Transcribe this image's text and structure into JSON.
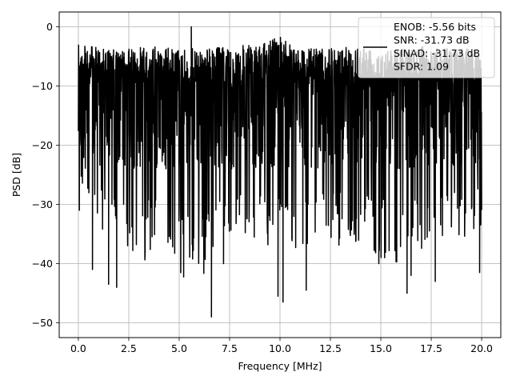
{
  "chart_data": {
    "type": "line",
    "xlabel": "Frequency [MHz]",
    "ylabel": "PSD [dB]",
    "xlim": [
      -0.95,
      20.95
    ],
    "ylim": [
      -52.5,
      2.5
    ],
    "grid": true,
    "x_ticks": [
      0.0,
      2.5,
      5.0,
      7.5,
      10.0,
      12.5,
      15.0,
      17.5,
      20.0
    ],
    "x_tick_labels": [
      "0.0",
      "2.5",
      "5.0",
      "7.5",
      "10.0",
      "12.5",
      "15.0",
      "17.5",
      "20.0"
    ],
    "y_ticks": [
      0,
      -10,
      -20,
      -30,
      -40,
      -50
    ],
    "y_tick_labels": [
      "0",
      "−10",
      "−20",
      "−30",
      "−40",
      "−50"
    ],
    "legend": {
      "placement": "top-right",
      "lines": [
        "ENOB: -5.56 bits",
        "SNR: -31.73 dB",
        "SINAD: -31.73 dB",
        "SFDR: 1.09"
      ]
    },
    "series": [
      {
        "color": "#000000",
        "x_range": [
          0,
          20
        ],
        "upper_envelope": [
          -3,
          -3.5,
          -4,
          -3.5,
          -3.2,
          -3.8,
          -3.6,
          -3.4,
          -3,
          -3.3,
          -1.2,
          -3.5,
          -3.8,
          -3.5,
          -3.2,
          -3.4,
          -3.6,
          -3.3,
          -3.5,
          -3.7,
          -3.8
        ],
        "lower_envelope": [
          -26,
          -34,
          -36,
          -41,
          -36,
          -43.5,
          -44,
          -38,
          -34,
          -37,
          -39,
          -38,
          -36,
          -37,
          -38,
          -39,
          -40,
          -38,
          -37,
          -36,
          -35
        ],
        "notable_points": [
          {
            "x": 0.05,
            "y": -31
          },
          {
            "x": 0.7,
            "y": -41
          },
          {
            "x": 1.5,
            "y": -43.5
          },
          {
            "x": 1.9,
            "y": -44
          },
          {
            "x": 5.6,
            "y": 0
          },
          {
            "x": 6.6,
            "y": -49
          },
          {
            "x": 7.2,
            "y": -40
          },
          {
            "x": 9.9,
            "y": -45.5
          },
          {
            "x": 10.15,
            "y": -46.5
          },
          {
            "x": 11.3,
            "y": -44.5
          },
          {
            "x": 14.9,
            "y": -40
          },
          {
            "x": 16.3,
            "y": -45
          },
          {
            "x": 16.5,
            "y": -42
          },
          {
            "x": 17.7,
            "y": -43
          },
          {
            "x": 19.9,
            "y": -41.5
          }
        ]
      }
    ]
  }
}
